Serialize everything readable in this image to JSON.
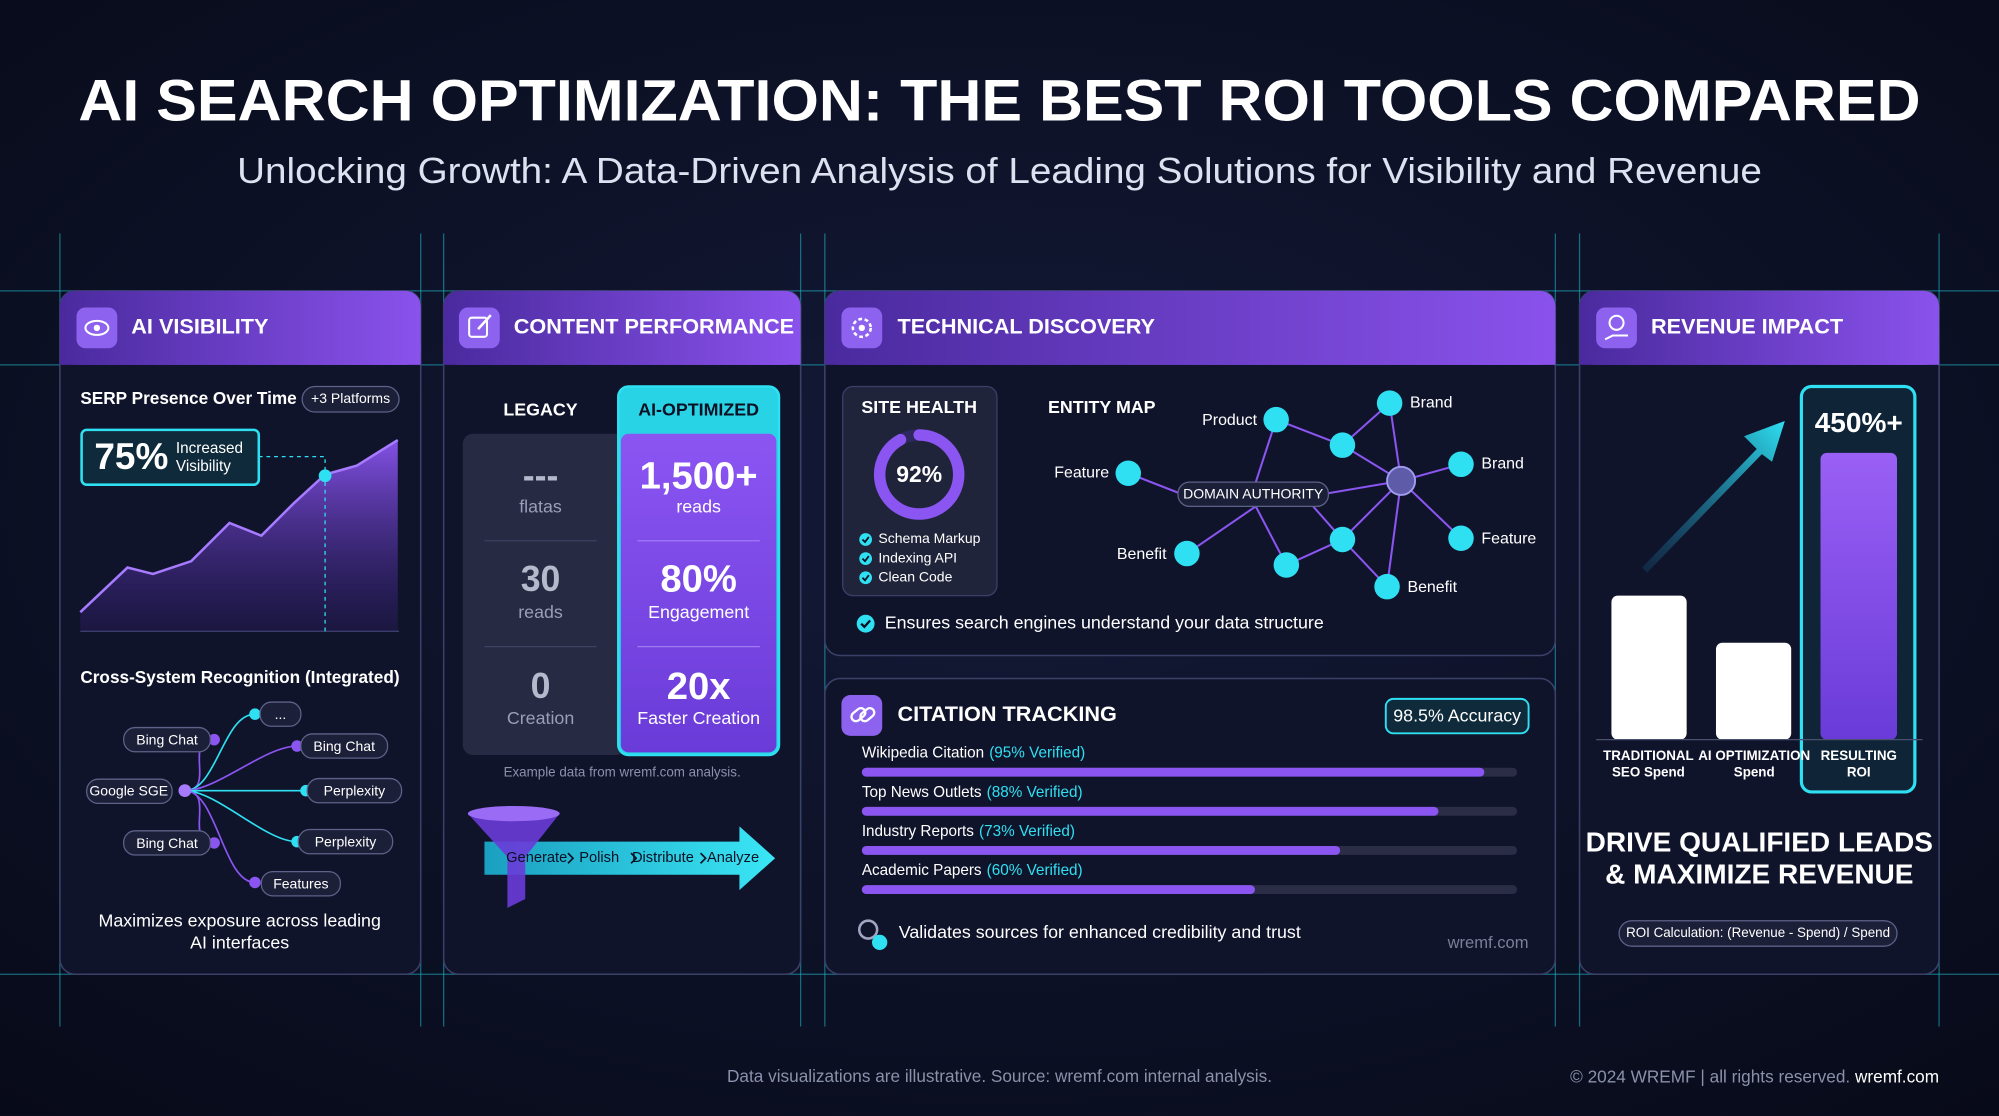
{
  "header": {
    "title": "AI SEARCH OPTIMIZATION: THE BEST ROI TOOLS COMPARED",
    "subtitle": "Unlocking Growth: A Data-Driven Analysis of Leading Solutions for Visibility and Revenue"
  },
  "visibility": {
    "title": "AI VISIBILITY",
    "chart_title": "SERP Presence Over Time",
    "badge": "+3 Platforms",
    "stat": "75%",
    "stat_label": [
      "Increased",
      "Visibility"
    ],
    "recognition_title": "Cross-System Recognition (Integrated)",
    "hub": "Google SGE",
    "nodes": [
      "Bing Chat",
      "...",
      "Bing Chat",
      "Perplexity",
      "Bing Chat",
      "Perplexity",
      "Features"
    ],
    "caption": [
      "Maximizes exposure across leading",
      "AI interfaces"
    ]
  },
  "content": {
    "title": "CONTENT PERFORMANCE",
    "legacy_header": "LEGACY",
    "ai_header": "AI-OPTIMIZED",
    "legacy": [
      {
        "value": "---",
        "label": "flatas"
      },
      {
        "value": "30",
        "label": "reads"
      },
      {
        "value": "0",
        "label": "Creation"
      }
    ],
    "ai": [
      {
        "value": "1,500+",
        "label": "reads"
      },
      {
        "value": "80%",
        "label": "Engagement"
      },
      {
        "value": "20x",
        "label": "Faster Creation"
      }
    ],
    "note": "Example data from wremf.com analysis.",
    "steps": [
      "Generate",
      "Polish",
      "Distribute",
      "Analyze"
    ]
  },
  "technical": {
    "title": "TECHNICAL DISCOVERY",
    "site_health": {
      "title": "SITE HEALTH",
      "score": {
        "value": 92,
        "label": "92%"
      },
      "checks": [
        "Schema Markup",
        "Indexing API",
        "Clean Code"
      ]
    },
    "entity_map": {
      "title": "ENTITY MAP",
      "center": "DOMAIN AUTHORITY",
      "entities": [
        "Product",
        "Brand",
        "Brand",
        "Feature",
        "Feature",
        "Benefit",
        "Benefit"
      ]
    },
    "footnote": "Ensures search engines understand your data structure"
  },
  "citation": {
    "title": "CITATION TRACKING",
    "accuracy": "98.5% Accuracy",
    "sources": [
      {
        "name": "Wikipedia Citation",
        "label": "(95% Verified)",
        "value": 95
      },
      {
        "name": "Top News Outlets",
        "label": "(88% Verified)",
        "value": 88
      },
      {
        "name": "Industry Reports",
        "label": "(73% Verified)",
        "value": 73
      },
      {
        "name": "Academic Papers",
        "label": "(60% Verified)",
        "value": 60
      }
    ],
    "footnote": "Validates sources for enhanced credibility and trust",
    "brand": "wremf.com"
  },
  "revenue": {
    "title": "REVENUE IMPACT",
    "roi": "450%+",
    "bars": [
      [
        "TRADITIONAL",
        "SEO Spend"
      ],
      [
        "AI OPTIMIZATION",
        "Spend"
      ],
      [
        "RESULTING",
        "ROI"
      ]
    ],
    "headline": [
      "DRIVE QUALIFIED LEADS",
      "& MAXIMIZE REVENUE"
    ],
    "formula": "ROI Calculation: (Revenue - Spend) / Spend"
  },
  "footer": {
    "source": "Data visualizations are illustrative. Source: wremf.com internal analysis.",
    "copyright": "© 2024 WREMF | all rights reserved. ",
    "site": "wremf.com"
  }
}
